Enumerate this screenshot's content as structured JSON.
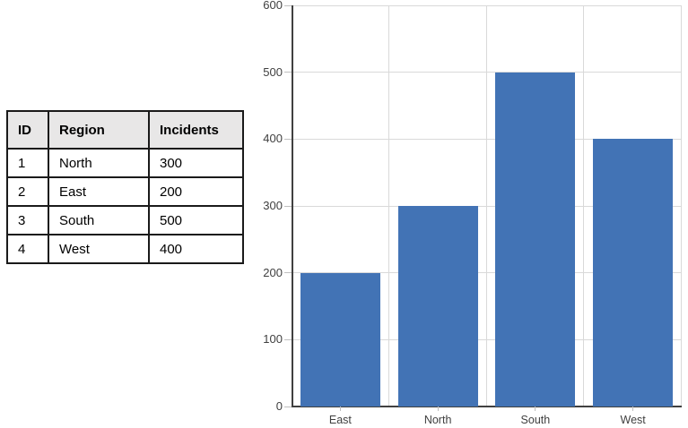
{
  "table": {
    "headers": [
      "ID",
      "Region",
      "Incidents"
    ],
    "rows": [
      [
        "1",
        "North",
        "300"
      ],
      [
        "2",
        "East",
        "200"
      ],
      [
        "3",
        "South",
        "500"
      ],
      [
        "4",
        "West",
        "400"
      ]
    ]
  },
  "chart_data": {
    "type": "bar",
    "categories": [
      "East",
      "North",
      "South",
      "West"
    ],
    "values": [
      200,
      300,
      500,
      400
    ],
    "title": "",
    "xlabel": "",
    "ylabel": "",
    "ylim": [
      0,
      600
    ],
    "ytick_interval": 100,
    "ytick_labels": [
      "0",
      "100",
      "200",
      "300",
      "400",
      "500",
      "600"
    ],
    "grid": "horizontal value lines and vertical category-boundary lines",
    "legend": "none",
    "bar_color": "#4273B5",
    "gridline_color": "#D9D9D9",
    "axis_color": "#404040",
    "tick_color": "#BFBFBF",
    "label_color": "#3F3F3F"
  },
  "colors": {
    "table_header_bg": "#E8E7E7",
    "table_border": "#1A1A1A",
    "background": "#FFFFFF"
  }
}
